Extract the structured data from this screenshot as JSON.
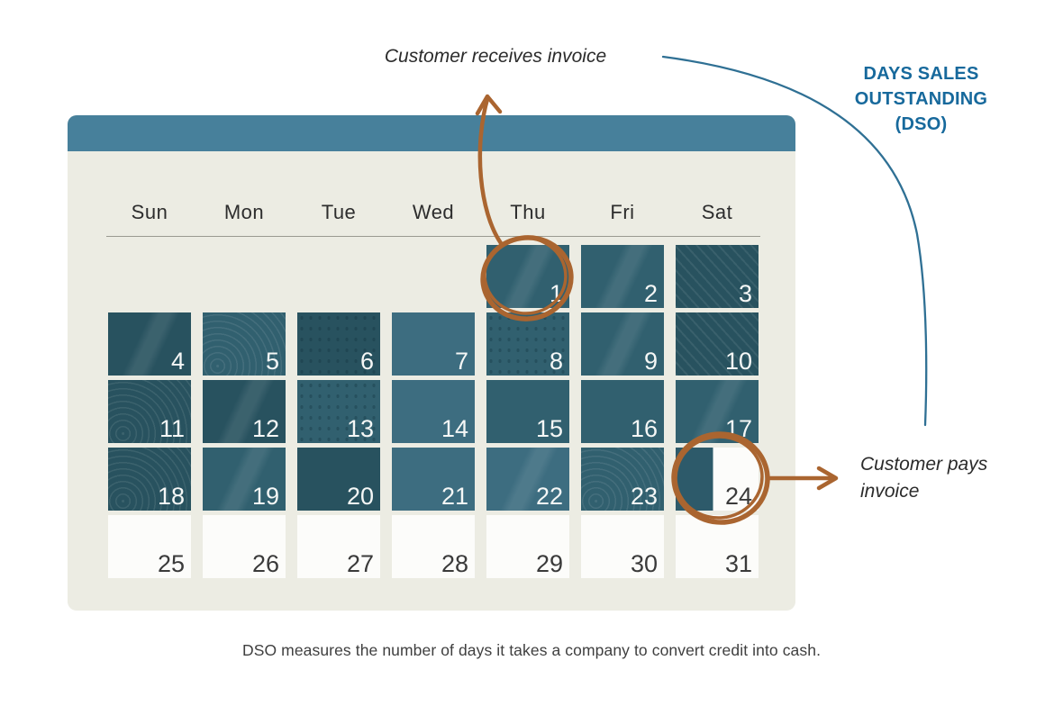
{
  "title": "DAYS SALES OUTSTANDING (DSO)",
  "annotations": {
    "receives_invoice": "Customer receives invoice",
    "pays_invoice": "Customer pays invoice"
  },
  "caption": "DSO measures the number of days it takes a company to convert credit into cash.",
  "calendar": {
    "weekdays": [
      "Sun",
      "Mon",
      "Tue",
      "Wed",
      "Thu",
      "Fri",
      "Sat"
    ],
    "highlight_meaning": "days outstanding between invoice and payment",
    "invoice_day": 1,
    "payment_day": 24,
    "days": [
      {
        "n": 1,
        "row": 0,
        "col": 4,
        "shade": "base",
        "tex": "streak"
      },
      {
        "n": 2,
        "row": 0,
        "col": 5,
        "shade": "base",
        "tex": "streak"
      },
      {
        "n": 3,
        "row": 0,
        "col": 6,
        "shade": "dark",
        "tex": "hatch"
      },
      {
        "n": 4,
        "row": 1,
        "col": 0,
        "shade": "dark",
        "tex": "streak"
      },
      {
        "n": 5,
        "row": 1,
        "col": 1,
        "shade": "base",
        "tex": "arcs"
      },
      {
        "n": 6,
        "row": 1,
        "col": 2,
        "shade": "dark",
        "tex": "dots"
      },
      {
        "n": 7,
        "row": 1,
        "col": 3,
        "shade": "light",
        "tex": "flat"
      },
      {
        "n": 8,
        "row": 1,
        "col": 4,
        "shade": "base",
        "tex": "dots"
      },
      {
        "n": 9,
        "row": 1,
        "col": 5,
        "shade": "base",
        "tex": "streak"
      },
      {
        "n": 10,
        "row": 1,
        "col": 6,
        "shade": "dark",
        "tex": "hatch"
      },
      {
        "n": 11,
        "row": 2,
        "col": 0,
        "shade": "dark",
        "tex": "arcs"
      },
      {
        "n": 12,
        "row": 2,
        "col": 1,
        "shade": "dark",
        "tex": "streak"
      },
      {
        "n": 13,
        "row": 2,
        "col": 2,
        "shade": "base",
        "tex": "dots"
      },
      {
        "n": 14,
        "row": 2,
        "col": 3,
        "shade": "light",
        "tex": "flat"
      },
      {
        "n": 15,
        "row": 2,
        "col": 4,
        "shade": "base",
        "tex": "flat"
      },
      {
        "n": 16,
        "row": 2,
        "col": 5,
        "shade": "base",
        "tex": "flat"
      },
      {
        "n": 17,
        "row": 2,
        "col": 6,
        "shade": "base",
        "tex": "streak"
      },
      {
        "n": 18,
        "row": 3,
        "col": 0,
        "shade": "dark",
        "tex": "arcs"
      },
      {
        "n": 19,
        "row": 3,
        "col": 1,
        "shade": "base",
        "tex": "streak"
      },
      {
        "n": 20,
        "row": 3,
        "col": 2,
        "shade": "dark",
        "tex": "flat"
      },
      {
        "n": 21,
        "row": 3,
        "col": 3,
        "shade": "light",
        "tex": "flat"
      },
      {
        "n": 22,
        "row": 3,
        "col": 4,
        "shade": "light",
        "tex": "streak"
      },
      {
        "n": 23,
        "row": 3,
        "col": 5,
        "shade": "base",
        "tex": "arcs"
      },
      {
        "n": 24,
        "row": 3,
        "col": 6,
        "shade": "split",
        "tex": "flat"
      },
      {
        "n": 25,
        "row": 4,
        "col": 0,
        "shade": "white",
        "tex": "flat"
      },
      {
        "n": 26,
        "row": 4,
        "col": 1,
        "shade": "white",
        "tex": "flat"
      },
      {
        "n": 27,
        "row": 4,
        "col": 2,
        "shade": "white",
        "tex": "flat"
      },
      {
        "n": 28,
        "row": 4,
        "col": 3,
        "shade": "white",
        "tex": "flat"
      },
      {
        "n": 29,
        "row": 4,
        "col": 4,
        "shade": "white",
        "tex": "flat"
      },
      {
        "n": 30,
        "row": 4,
        "col": 5,
        "shade": "white",
        "tex": "flat"
      },
      {
        "n": 31,
        "row": 4,
        "col": 6,
        "shade": "white",
        "tex": "flat"
      }
    ]
  },
  "colors": {
    "panel_cream": "#ecece3",
    "header_teal": "#47809b",
    "cell_teal": "#31606f",
    "annotation_orange": "#aa6530",
    "title_blue": "#17699c",
    "arc_teal": "#2f7094"
  }
}
